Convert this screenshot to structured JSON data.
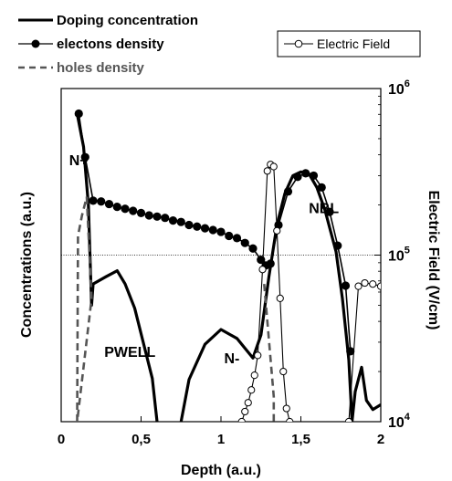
{
  "chart_data": {
    "type": "line",
    "xlabel": "Depth (a.u.)",
    "ylabel_left": "Concentrations (a.u.)",
    "ylabel_right": "Electric Field (V/cm)",
    "xlim": [
      0,
      2
    ],
    "x_ticks": [
      "0",
      "0,5",
      "1",
      "1,5",
      "2"
    ],
    "right_axis": {
      "scale": "log",
      "ylim": [
        10000,
        1000000
      ],
      "tick_labels": [
        {
          "value": 10000,
          "base": "10",
          "exp": "4"
        },
        {
          "value": 100000,
          "base": "10",
          "exp": "5"
        },
        {
          "value": 1000000,
          "base": "10",
          "exp": "6"
        }
      ]
    },
    "left_axis": {
      "scale": "log",
      "ylim": [
        0.0001,
        1
      ],
      "tick_labels": []
    },
    "reference_line": {
      "axis": "right",
      "value": 100000
    },
    "legend": {
      "placement": "top-left",
      "entries": [
        {
          "label": "Doping concentration",
          "style": "solid-bold"
        },
        {
          "label": "electons density",
          "style": "line-filled-circle"
        },
        {
          "label": "holes density",
          "style": "dashed"
        }
      ]
    },
    "legend_right": {
      "placement": "top-right",
      "entries": [
        {
          "label": "Electric Field",
          "style": "line-open-circle"
        }
      ]
    },
    "annotations": [
      {
        "text": "N+",
        "x": 0.05,
        "y": 0.12
      },
      {
        "text": "PWELL",
        "x": 0.27,
        "y": 0.0006
      },
      {
        "text": "N-",
        "x": 1.02,
        "y": 0.0005
      },
      {
        "text": "NBL",
        "x": 1.55,
        "y": 0.032
      }
    ],
    "series": [
      {
        "name": "Doping concentration",
        "axis": "left",
        "style": "solid-bold",
        "color": "#000000",
        "segments": [
          [
            [
              0.1,
              0.5
            ],
            [
              0.14,
              0.2
            ],
            [
              0.17,
              0.04
            ],
            [
              0.19,
              0.0025
            ],
            [
              0.2,
              0.0045
            ],
            [
              0.28,
              0.0055
            ],
            [
              0.35,
              0.0065
            ],
            [
              0.4,
              0.0045
            ],
            [
              0.46,
              0.0023
            ],
            [
              0.52,
              0.0008
            ],
            [
              0.57,
              0.00033
            ],
            [
              0.6,
              0.0001
            ]
          ],
          [
            [
              0.75,
              0.0001
            ],
            [
              0.8,
              0.00032
            ],
            [
              0.9,
              0.00085
            ],
            [
              1.0,
              0.00128
            ],
            [
              1.1,
              0.001
            ],
            [
              1.2,
              0.00058
            ],
            [
              1.25,
              0.0011
            ],
            [
              1.3,
              0.0055
            ],
            [
              1.35,
              0.023
            ],
            [
              1.4,
              0.055
            ],
            [
              1.45,
              0.09
            ],
            [
              1.5,
              0.1
            ],
            [
              1.55,
              0.095
            ],
            [
              1.6,
              0.065
            ],
            [
              1.65,
              0.035
            ],
            [
              1.72,
              0.011
            ],
            [
              1.76,
              0.003
            ],
            [
              1.8,
              0.00055
            ],
            [
              1.82,
              0.0001
            ]
          ],
          [
            [
              1.82,
              0.0001
            ],
            [
              1.84,
              0.00023
            ],
            [
              1.88,
              0.00045
            ],
            [
              1.91,
              0.00018
            ],
            [
              1.95,
              0.00014
            ],
            [
              2.0,
              0.00016
            ]
          ]
        ]
      },
      {
        "name": "electons density",
        "axis": "left",
        "style": "line-filled-circle",
        "color": "#000000",
        "points": [
          [
            0.11,
            0.5
          ],
          [
            0.15,
            0.15
          ],
          [
            0.2,
            0.045
          ],
          [
            0.25,
            0.044
          ],
          [
            0.3,
            0.041
          ],
          [
            0.35,
            0.038
          ],
          [
            0.4,
            0.036
          ],
          [
            0.45,
            0.034
          ],
          [
            0.5,
            0.032
          ],
          [
            0.55,
            0.03
          ],
          [
            0.6,
            0.029
          ],
          [
            0.65,
            0.028
          ],
          [
            0.7,
            0.026
          ],
          [
            0.75,
            0.025
          ],
          [
            0.8,
            0.023
          ],
          [
            0.85,
            0.022
          ],
          [
            0.9,
            0.021
          ],
          [
            0.95,
            0.02
          ],
          [
            1.0,
            0.019
          ],
          [
            1.05,
            0.017
          ],
          [
            1.1,
            0.016
          ],
          [
            1.15,
            0.014
          ],
          [
            1.2,
            0.012
          ],
          [
            1.25,
            0.0088
          ],
          [
            1.28,
            0.0075
          ],
          [
            1.31,
            0.0079
          ],
          [
            1.36,
            0.023
          ],
          [
            1.42,
            0.058
          ],
          [
            1.48,
            0.087
          ],
          [
            1.53,
            0.096
          ],
          [
            1.58,
            0.09
          ],
          [
            1.63,
            0.065
          ],
          [
            1.68,
            0.033
          ],
          [
            1.73,
            0.013
          ],
          [
            1.78,
            0.0043
          ],
          [
            1.81,
            0.0007
          ]
        ]
      },
      {
        "name": "holes density",
        "axis": "left",
        "style": "dashed",
        "color": "#555555",
        "segments": [
          [
            [
              0.1,
              0.0001
            ],
            [
              0.105,
              0.017
            ],
            [
              0.13,
              0.03
            ],
            [
              0.16,
              0.05
            ]
          ],
          [
            [
              0.16,
              0.05
            ],
            [
              0.19,
              0.003
            ],
            [
              0.1,
              0.0001
            ]
          ],
          [
            [
              1.27,
              0.0045
            ],
            [
              1.33,
              0.0002
            ],
            [
              1.33,
              0.0001
            ]
          ]
        ]
      },
      {
        "name": "Electric Field",
        "axis": "right",
        "style": "line-open-circle",
        "color": "#000000",
        "segments": [
          [
            [
              1.13,
              10000
            ],
            [
              1.15,
              11500
            ],
            [
              1.17,
              13000
            ],
            [
              1.19,
              15500
            ],
            [
              1.21,
              19000
            ],
            [
              1.23,
              25000
            ],
            [
              1.26,
              82000
            ],
            [
              1.29,
              320000
            ],
            [
              1.31,
              350000
            ],
            [
              1.33,
              340000
            ],
            [
              1.35,
              140000
            ],
            [
              1.37,
              55000
            ],
            [
              1.39,
              20000
            ],
            [
              1.41,
              12000
            ],
            [
              1.43,
              10000
            ]
          ],
          [
            [
              1.8,
              10000
            ],
            [
              1.86,
              65000
            ],
            [
              1.9,
              68000
            ],
            [
              1.95,
              67000
            ],
            [
              2.0,
              65000
            ]
          ]
        ]
      }
    ]
  }
}
